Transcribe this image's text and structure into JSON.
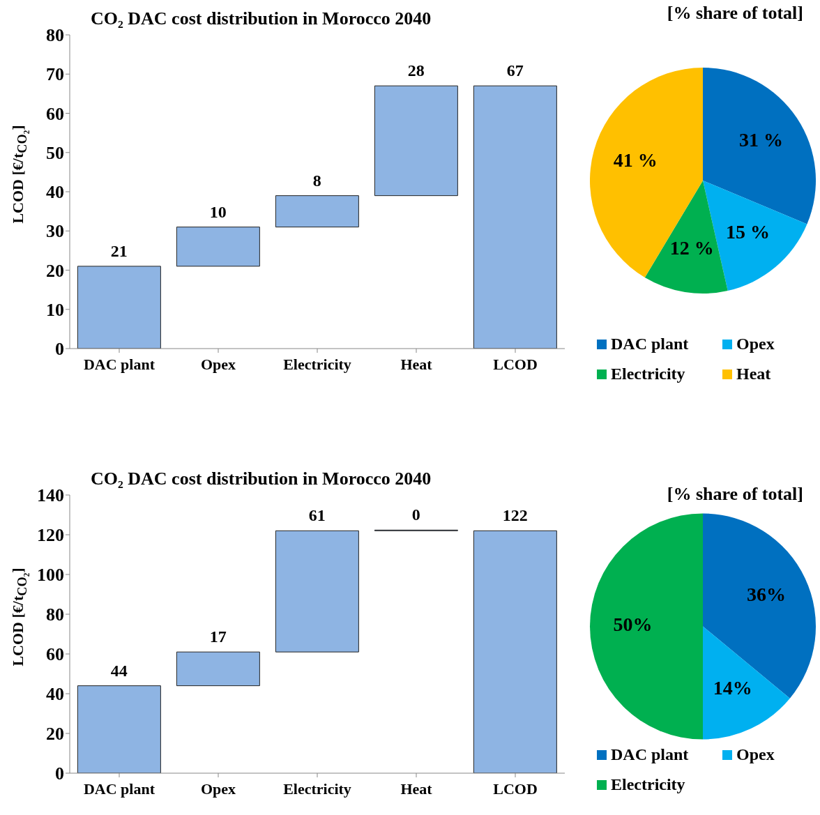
{
  "chart_data": [
    {
      "type": "bar",
      "title": "CO₂ DAC cost distribution in Morocco 2040",
      "ylabel": "LCOD [€/t$_{CO₂}$]",
      "categories": [
        "DAC plant",
        "Opex",
        "Electricity",
        "Heat",
        "LCOD"
      ],
      "values": [
        21,
        10,
        8,
        28,
        67
      ],
      "base": [
        0,
        21,
        31,
        39,
        0
      ],
      "color": "#8eb4e3",
      "ylim": [
        0,
        80
      ],
      "yticks": [
        0,
        10,
        20,
        30,
        40,
        50,
        60,
        70,
        80
      ],
      "data_labels": true,
      "grid": false
    },
    {
      "type": "pie",
      "title": "[% share of total]",
      "categories": [
        "DAC plant",
        "Opex",
        "Electricity",
        "Heat"
      ],
      "values": [
        31,
        15,
        12,
        41
      ],
      "colors": [
        "#0070c0",
        "#00b0f0",
        "#00b050",
        "#ffc000"
      ],
      "value_labels": [
        "31 %",
        "15 %",
        "12 %",
        "41 %"
      ],
      "legend": "bottom"
    },
    {
      "type": "bar",
      "title": "CO₂ DAC cost distribution in Morocco 2040",
      "ylabel": "LCOD [€/t$_{CO₂}$]",
      "categories": [
        "DAC plant",
        "Opex",
        "Electricity",
        "Heat",
        "LCOD"
      ],
      "values": [
        44,
        17,
        61,
        0,
        122
      ],
      "base": [
        0,
        44,
        61,
        122,
        0
      ],
      "color": "#8eb4e3",
      "ylim": [
        0,
        140
      ],
      "yticks": [
        0,
        20,
        40,
        60,
        80,
        100,
        120,
        140
      ],
      "data_labels": true,
      "grid": false
    },
    {
      "type": "pie",
      "title": "[% share of total]",
      "categories": [
        "DAC plant",
        "Opex",
        "Electricity"
      ],
      "values": [
        36,
        14,
        50
      ],
      "colors": [
        "#0070c0",
        "#00b0f0",
        "#00b050"
      ],
      "value_labels": [
        "36%",
        "14%",
        "50%"
      ],
      "legend": "bottom"
    }
  ]
}
